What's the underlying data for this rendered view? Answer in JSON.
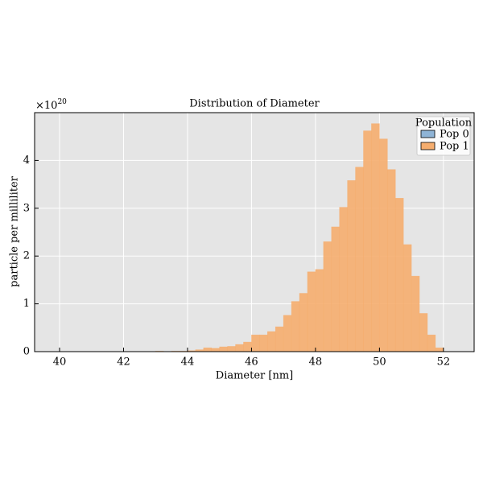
{
  "chart_data": {
    "type": "histogram",
    "title": "Distribution of Diameter",
    "xlabel": "Diameter [nm]",
    "ylabel": "particle per milliliter",
    "y_offset_label": "×10",
    "y_offset_exponent": "20",
    "bins": [
      43,
      43.25,
      43.5,
      43.75,
      44,
      44.25,
      44.5,
      44.75,
      45,
      45.25,
      45.5,
      45.75,
      46,
      46.25,
      46.5,
      46.75,
      47,
      47.25,
      47.5,
      47.75,
      48,
      48.25,
      48.5,
      48.75,
      49,
      49.25,
      49.5,
      49.75,
      50,
      50.25,
      50.5,
      50.75,
      51,
      51.25,
      51.5,
      51.75,
      52
    ],
    "series": [
      {
        "name": "Pop 0",
        "color": "#8fb4d6",
        "values": [
          0,
          0,
          0,
          0,
          0,
          0,
          0,
          0,
          0,
          0,
          0,
          0,
          0,
          0,
          0,
          0,
          0,
          0,
          0,
          0,
          0,
          0,
          0,
          0,
          0,
          0,
          0,
          0,
          0,
          0,
          0,
          0,
          0,
          0,
          0,
          0
        ]
      },
      {
        "name": "Pop 1",
        "color": "#f5ad6e",
        "values": [
          0.01,
          0,
          0.01,
          0.01,
          0.02,
          0.04,
          0.08,
          0.07,
          0.1,
          0.11,
          0.15,
          0.2,
          0.35,
          0.35,
          0.42,
          0.52,
          0.76,
          1.05,
          1.22,
          1.67,
          1.72,
          2.3,
          2.61,
          3.02,
          3.58,
          3.86,
          4.62,
          4.77,
          4.45,
          3.81,
          3.21,
          2.24,
          1.58,
          0.8,
          0.35,
          0.08
        ]
      }
    ],
    "legend_title": "Population",
    "legend": "upper right",
    "xlim": [
      39.22,
      52.96
    ],
    "ylim": [
      0,
      5
    ],
    "xticks": [
      40,
      42,
      44,
      46,
      48,
      50,
      52
    ],
    "yticks": [
      0,
      1,
      2,
      3,
      4
    ],
    "grid": true
  }
}
